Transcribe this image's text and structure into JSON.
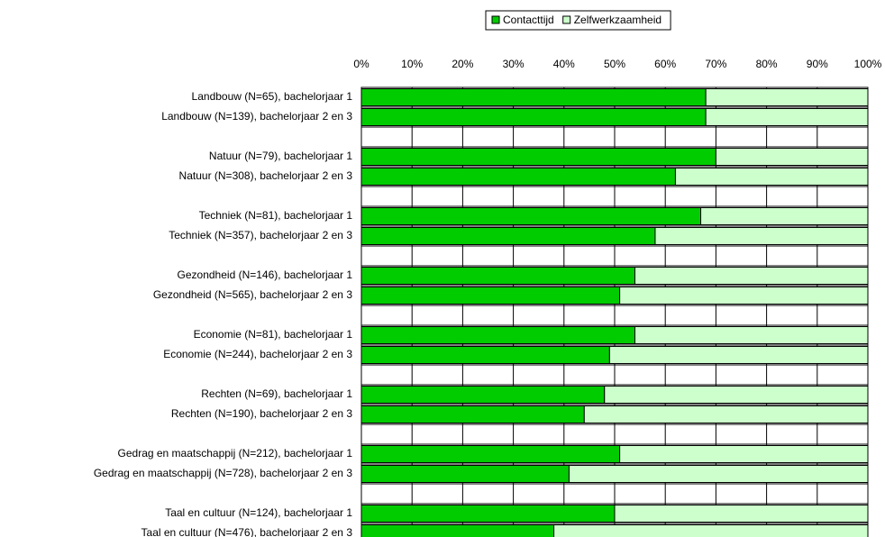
{
  "chart_data": {
    "type": "stacked-barh",
    "categories": [
      "Landbouw  (N=65), bachelorjaar 1",
      "Landbouw  (N=139), bachelorjaar 2 en 3",
      null,
      "Natuur (N=79), bachelorjaar 1",
      "Natuur (N=308), bachelorjaar 2 en 3",
      null,
      "Techniek (N=81), bachelorjaar 1",
      "Techniek (N=357), bachelorjaar 2 en 3",
      null,
      "Gezondheid (N=146), bachelorjaar 1",
      "Gezondheid (N=565), bachelorjaar 2 en 3",
      null,
      "Economie (N=81), bachelorjaar 1",
      "Economie (N=244), bachelorjaar 2 en 3",
      null,
      "Rechten (N=69), bachelorjaar 1",
      "Rechten (N=190), bachelorjaar 2 en 3",
      null,
      "Gedrag en maatschappij (N=212), bachelorjaar 1",
      "Gedrag en maatschappij (N=728), bachelorjaar 2 en 3",
      null,
      "Taal en cultuur (N=124), bachelorjaar 1",
      "Taal en cultuur (N=476), bachelorjaar 2 en 3"
    ],
    "series": [
      {
        "name": "Contacttijd",
        "color": "#00cc00",
        "values": [
          68,
          68,
          null,
          70,
          62,
          null,
          67,
          58,
          null,
          54,
          51,
          null,
          54,
          49,
          null,
          48,
          44,
          null,
          51,
          41,
          null,
          50,
          38
        ]
      },
      {
        "name": "Zelfwerkzaamheid",
        "color": "#ccffcc",
        "values": [
          32,
          32,
          null,
          30,
          38,
          null,
          33,
          42,
          null,
          46,
          49,
          null,
          46,
          51,
          null,
          52,
          56,
          null,
          49,
          59,
          null,
          50,
          62
        ]
      }
    ],
    "xlim": [
      0,
      100
    ],
    "xticks": [
      {
        "value": 0,
        "label": "0%"
      },
      {
        "value": 10,
        "label": "10%"
      },
      {
        "value": 20,
        "label": "20%"
      },
      {
        "value": 30,
        "label": "30%"
      },
      {
        "value": 40,
        "label": "40%"
      },
      {
        "value": 50,
        "label": "50%"
      },
      {
        "value": 60,
        "label": "60%"
      },
      {
        "value": 70,
        "label": "70%"
      },
      {
        "value": 80,
        "label": "80%"
      },
      {
        "value": 90,
        "label": "90%"
      },
      {
        "value": 100,
        "label": "100%"
      }
    ],
    "grid": true,
    "legend": "top"
  }
}
